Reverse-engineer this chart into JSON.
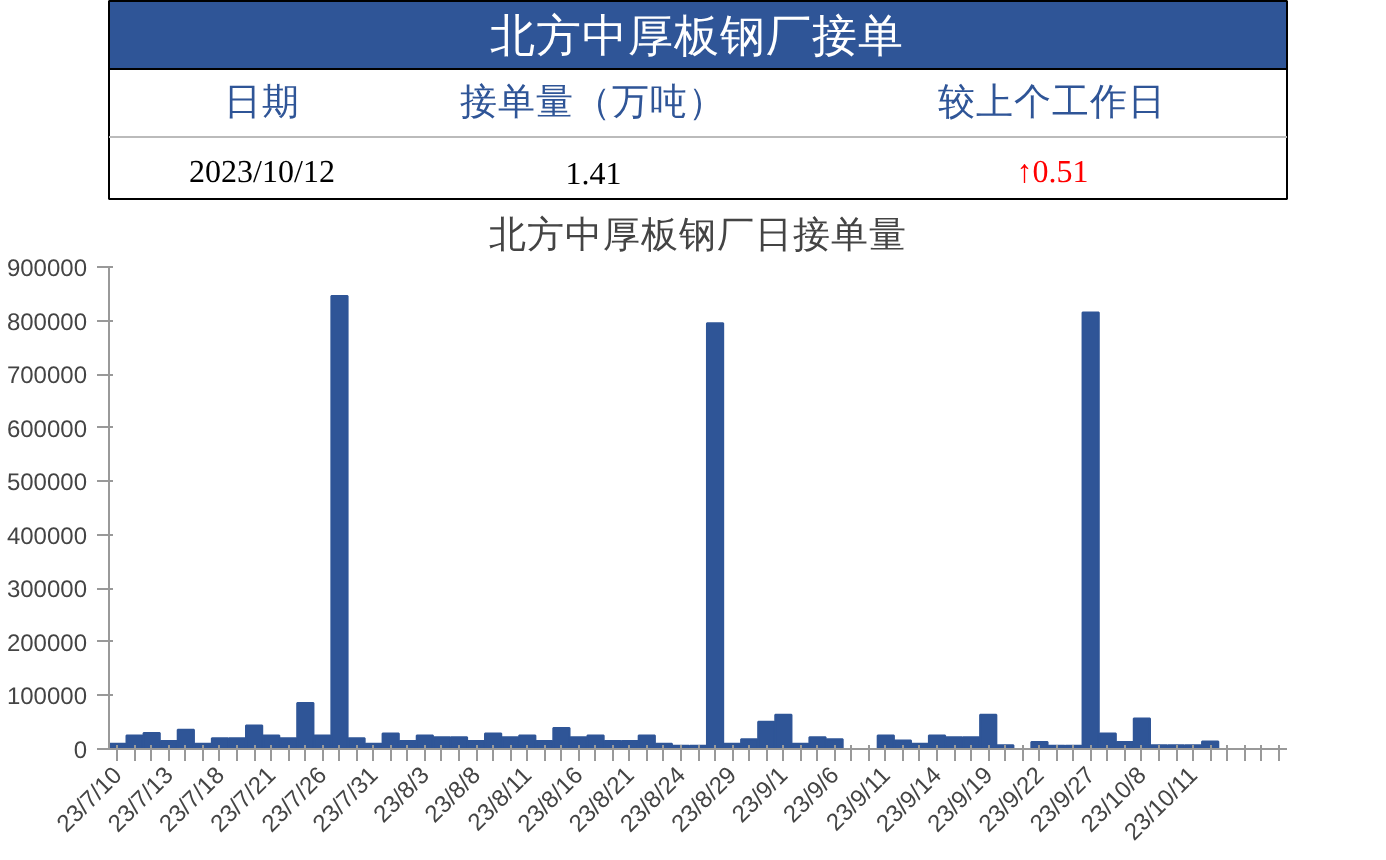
{
  "chart_data": [
    {
      "type": "other",
      "title": "北方中厚板钢厂接单",
      "annotations": [
        "日期",
        "接单量（万吨）",
        "较上个工作日",
        "2023/10/12",
        "1.41",
        "↑0.51"
      ]
    },
    {
      "type": "bar",
      "title": "北方中厚板钢厂日接单量",
      "color": "#2f5597",
      "ylim": [
        0,
        900000
      ],
      "yticks": [
        0,
        100000,
        200000,
        300000,
        400000,
        500000,
        600000,
        700000,
        800000,
        900000
      ],
      "grid": false,
      "categories": [
        "23/7/10",
        null,
        null,
        "23/7/13",
        null,
        null,
        "23/7/18",
        null,
        null,
        "23/7/21",
        null,
        null,
        "23/7/26",
        null,
        null,
        "23/7/31",
        null,
        null,
        "23/8/3",
        null,
        null,
        "23/8/8",
        null,
        null,
        "23/8/11",
        null,
        null,
        "23/8/16",
        null,
        null,
        "23/8/21",
        null,
        null,
        "23/8/24",
        null,
        null,
        "23/8/29",
        null,
        null,
        "23/9/1",
        null,
        null,
        "23/9/6",
        null,
        null,
        "23/9/11",
        null,
        null,
        "23/9/14",
        null,
        null,
        "23/9/19",
        null,
        null,
        "23/9/22",
        null,
        null,
        "23/9/27",
        null,
        null,
        "23/10/8",
        null,
        null,
        "23/10/11",
        null,
        null,
        null,
        null,
        null
      ],
      "values": [
        10000,
        25000,
        30000,
        15000,
        36000,
        10000,
        20000,
        20000,
        44000,
        25000,
        20000,
        86000,
        25000,
        846000,
        20000,
        10000,
        29000,
        15000,
        25000,
        22000,
        22000,
        15000,
        29000,
        22000,
        25000,
        15000,
        39000,
        22000,
        25000,
        15000,
        15000,
        25000,
        10000,
        6000,
        6000,
        795000,
        10000,
        18000,
        51000,
        64000,
        10000,
        22000,
        18000,
        0,
        0,
        25000,
        16000,
        10000,
        25000,
        22000,
        22000,
        64000,
        7000,
        0,
        13000,
        6000,
        6000,
        815000,
        29000,
        13000,
        57000,
        7000,
        7000,
        7000,
        14000,
        null,
        null,
        null,
        null
      ]
    }
  ]
}
